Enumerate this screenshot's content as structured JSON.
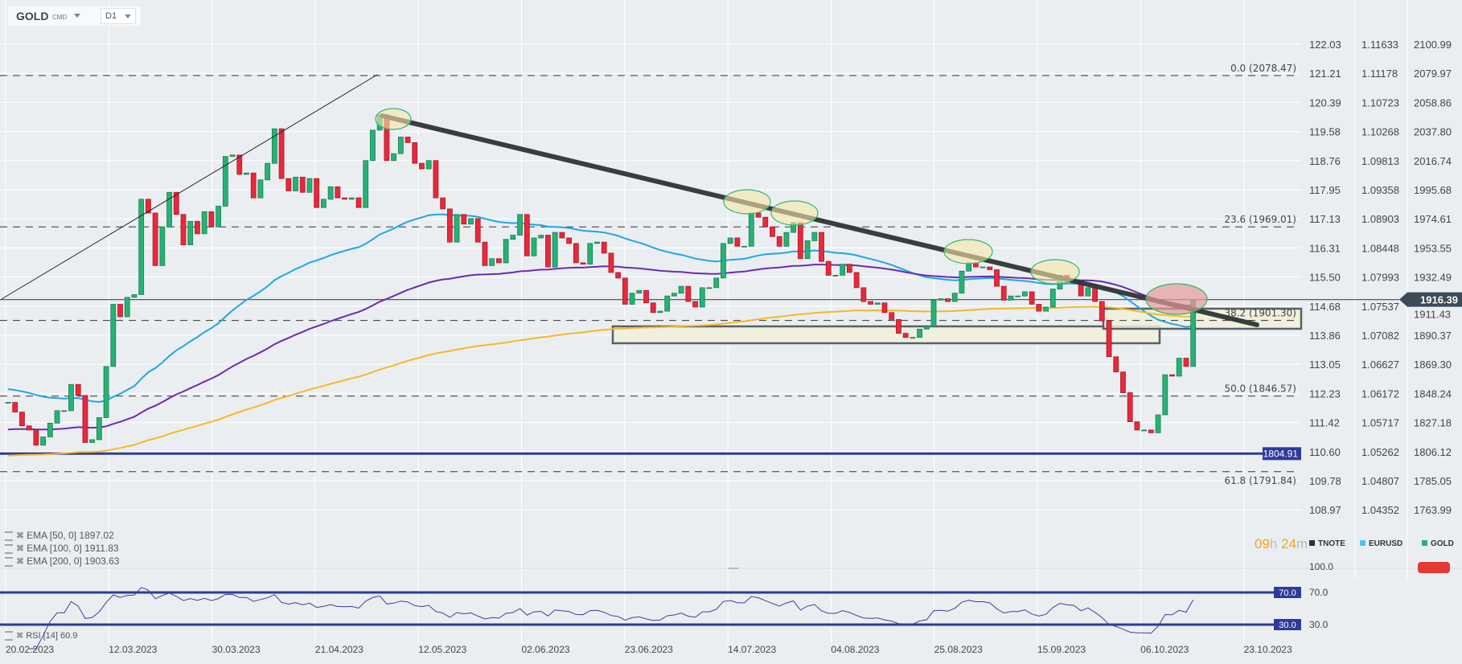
{
  "toolbar": {
    "symbol": "GOLD",
    "type": "CMD",
    "timeframe": "D1"
  },
  "chart_data": {
    "type": "candlestick",
    "instrument": "GOLD",
    "closes": [
      1842,
      1835,
      1825,
      1822,
      1811,
      1817,
      1827,
      1836,
      1836,
      1855,
      1847,
      1813,
      1815,
      1831,
      1868,
      1913,
      1904,
      1918,
      1920,
      1989,
      1979,
      1941,
      1969,
      1994,
      1978,
      1956,
      1973,
      1964,
      1980,
      1969,
      1984,
      2020,
      2021,
      2007,
      2008,
      1990,
      2003,
      2015,
      2040,
      2004,
      1995,
      2005,
      1994,
      2004,
      1983,
      1989,
      1998,
      1990,
      1989,
      1990,
      1983,
      2017,
      2039,
      2050,
      2017,
      2022,
      2034,
      2030,
      2015,
      2011,
      2017,
      1990,
      1982,
      1958,
      1978,
      1971,
      1975,
      1958,
      1941,
      1946,
      1943,
      1960,
      1963,
      1978,
      1948,
      1961,
      1963,
      1940,
      1965,
      1961,
      1957,
      1943,
      1942,
      1957,
      1958,
      1950,
      1936,
      1932,
      1913,
      1921,
      1923,
      1914,
      1907,
      1908,
      1919,
      1921,
      1926,
      1915,
      1911,
      1925,
      1925,
      1932,
      1957,
      1961,
      1955,
      1955,
      1979,
      1976,
      1969,
      1962,
      1955,
      1965,
      1972,
      1946,
      1959,
      1965,
      1944,
      1934,
      1934,
      1942,
      1936,
      1925,
      1915,
      1913,
      1914,
      1907,
      1902,
      1892,
      1889,
      1889,
      1895,
      1897,
      1916,
      1917,
      1915,
      1921,
      1937,
      1943,
      1940,
      1940,
      1938,
      1926,
      1916,
      1919,
      1919,
      1922,
      1913,
      1908,
      1911,
      1924,
      1934,
      1931,
      1930,
      1919,
      1925,
      1915,
      1901,
      1875,
      1864,
      1849,
      1828,
      1822,
      1822,
      1820,
      1833,
      1862,
      1861,
      1874,
      1868,
      1916.39
    ],
    "x_ticks": [
      "20.02.2023",
      "12.03.2023",
      "30.03.2023",
      "21.04.2023",
      "12.05.2023",
      "02.06.2023",
      "23.06.2023",
      "14.07.2023",
      "04.08.2023",
      "25.08.2023",
      "15.09.2023",
      "06.10.2023",
      "23.10.2023"
    ],
    "axes": [
      {
        "name": "TNOTE",
        "ticks": [
          "122.03",
          "121.21",
          "120.39",
          "119.58",
          "118.76",
          "117.95",
          "117.13",
          "116.31",
          "115.50",
          "114.68",
          "113.86",
          "113.05",
          "112.23",
          "111.42",
          "110.60",
          "109.78",
          "108.97"
        ]
      },
      {
        "name": "EURUSD",
        "ticks": [
          "1.11633",
          "1.11178",
          "1.10723",
          "1.10268",
          "1.09813",
          "1.09358",
          "1.08903",
          "1.08448",
          "1.07993",
          "1.07537",
          "1.07082",
          "1.06627",
          "1.06172",
          "1.05717",
          "1.05262",
          "1.04807",
          "1.04352"
        ]
      },
      {
        "name": "GOLD",
        "ticks": [
          "2100.99",
          "2079.97",
          "2058.86",
          "2037.80",
          "2016.74",
          "1995.68",
          "1974.61",
          "1953.55",
          "1932.49",
          "1911.43",
          "1890.37",
          "1869.30",
          "1848.24",
          "1827.18",
          "1806.12",
          "1785.05",
          "1763.99"
        ]
      }
    ],
    "ylim": [
      1763.99,
      2100.99
    ],
    "grid": true,
    "current_price": "1916.39",
    "support_level": {
      "value": 1804.91,
      "label": "1804.91"
    },
    "fibonacci": [
      {
        "value": 2078.47,
        "label": "0.0 (2078.47)"
      },
      {
        "value": 1969.01,
        "label": "23.6 (1969.01)"
      },
      {
        "value": 1901.3,
        "label": "38.2 (1901.30)"
      },
      {
        "value": 1846.57,
        "label": "50.0 (1846.57)"
      },
      {
        "value": 1791.84,
        "label": "61.8 (1791.84)"
      }
    ],
    "indicators": [
      {
        "label": "EMA  [50,  0] 1897.02",
        "period": 50,
        "color": "#1ea7e8"
      },
      {
        "label": "EMA  [100,  0] 1911.83",
        "period": 100,
        "color": "#6a2bb5"
      },
      {
        "label": "EMA  [200,  0] 1903.63",
        "period": 200,
        "color": "#f7b924"
      }
    ],
    "rsi": {
      "label": "RSI [14] 60.9",
      "period": 14,
      "levels": [
        "70.0",
        "30.0"
      ],
      "axis_ticks": [
        "100.0",
        "70.0",
        "30.0"
      ],
      "color": "#3b3f9e"
    },
    "colors": {
      "up": "#26b276",
      "down": "#e8283c",
      "trendline": "#2f3432",
      "level": "#2e3a9b"
    }
  },
  "legend": {
    "items": [
      {
        "name": "TNOTE",
        "color": "#2b3238"
      },
      {
        "name": "EURUSD",
        "color": "#4fc3f7"
      },
      {
        "name": "GOLD",
        "color": "#26b276"
      }
    ]
  },
  "timer": {
    "hours": "09",
    "h": "h",
    "minutes": "24",
    "m": "m"
  }
}
